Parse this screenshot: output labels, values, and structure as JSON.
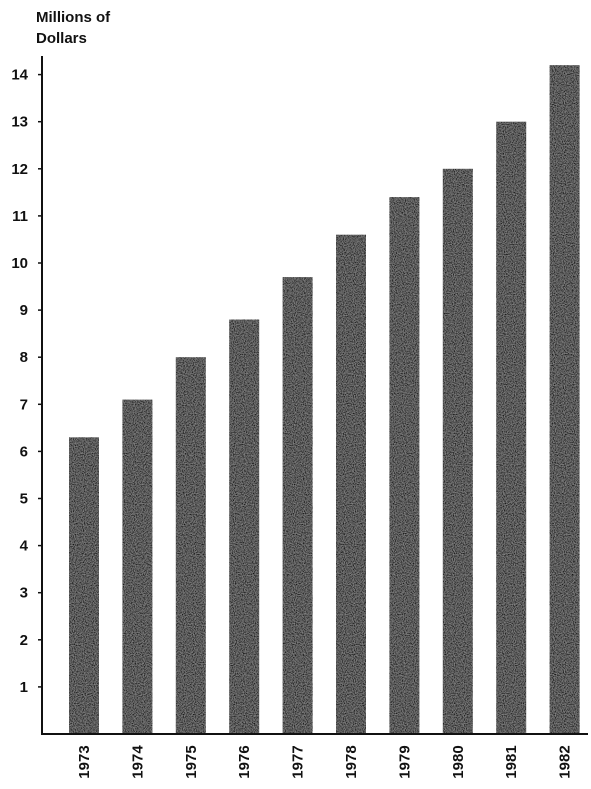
{
  "chart_data": {
    "type": "bar",
    "ylabel_lines": [
      "Millions of",
      "Dollars"
    ],
    "categories": [
      "1973",
      "1974",
      "1975",
      "1976",
      "1977",
      "1978",
      "1979",
      "1980",
      "1981",
      "1982"
    ],
    "values": [
      6.3,
      7.1,
      8.0,
      8.8,
      9.7,
      10.6,
      11.4,
      12.0,
      13.0,
      14.2
    ],
    "yticks": [
      1,
      2,
      3,
      4,
      5,
      6,
      7,
      8,
      9,
      10,
      11,
      12,
      13,
      14
    ],
    "ylim": [
      0,
      14.5
    ],
    "grid": false,
    "bar_color": "#141414",
    "text_color": "#111111"
  }
}
